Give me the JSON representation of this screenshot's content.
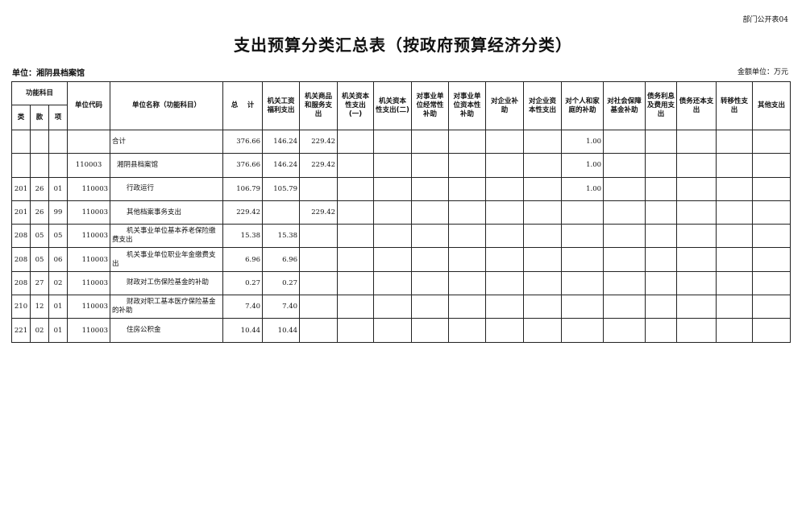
{
  "form_no": "部门公开表04",
  "title": "支出预算分类汇总表（按政府预算经济分类）",
  "unit_label": "单位：湘阴县档案馆",
  "amount_unit": "金额单位：万元",
  "headers": {
    "func_group": "功能科目",
    "lei": "类",
    "kuan": "款",
    "xiang": "项",
    "unit_code": "单位代码",
    "unit_name": "单位名称（功能科目）",
    "total": "总　 计",
    "cols": [
      "机关工资福利支出",
      "机关商品和服务支出",
      "机关资本性支出(一)",
      "机关资本性支出(二)",
      "对事业单位经常性补助",
      "对事业单位资本性补助",
      "对企业补助",
      "对企业资本性支出",
      "对个人和家庭的补助",
      "对社会保障基金补助",
      "债务利息及费用支出",
      "债务还本支出",
      "转移性支出",
      "其他支出"
    ]
  },
  "rows": [
    {
      "lei": "",
      "kuan": "",
      "xiang": "",
      "code": "",
      "name": "合计",
      "level": 0,
      "total": "376.66",
      "values": [
        "146.24",
        "229.42",
        "",
        "",
        "",
        "",
        "",
        "",
        "1.00",
        "",
        "",
        "",
        "",
        ""
      ]
    },
    {
      "lei": "",
      "kuan": "",
      "xiang": "",
      "code": "110003",
      "name": "湘阴县档案馆",
      "level": 1,
      "total": "376.66",
      "values": [
        "146.24",
        "229.42",
        "",
        "",
        "",
        "",
        "",
        "",
        "1.00",
        "",
        "",
        "",
        "",
        ""
      ]
    },
    {
      "lei": "201",
      "kuan": "26",
      "xiang": "01",
      "code": "110003",
      "name": "行政运行",
      "level": 2,
      "total": "106.79",
      "values": [
        "105.79",
        "",
        "",
        "",
        "",
        "",
        "",
        "",
        "1.00",
        "",
        "",
        "",
        "",
        ""
      ]
    },
    {
      "lei": "201",
      "kuan": "26",
      "xiang": "99",
      "code": "110003",
      "name": "其他档案事务支出",
      "level": 2,
      "total": "229.42",
      "values": [
        "",
        "229.42",
        "",
        "",
        "",
        "",
        "",
        "",
        "",
        "",
        "",
        "",
        "",
        ""
      ]
    },
    {
      "lei": "208",
      "kuan": "05",
      "xiang": "05",
      "code": "110003",
      "name": "机关事业单位基本养老保险缴费支出",
      "level": 2,
      "total": "15.38",
      "values": [
        "15.38",
        "",
        "",
        "",
        "",
        "",
        "",
        "",
        "",
        "",
        "",
        "",
        "",
        ""
      ]
    },
    {
      "lei": "208",
      "kuan": "05",
      "xiang": "06",
      "code": "110003",
      "name": "机关事业单位职业年金缴费支出",
      "level": 2,
      "total": "6.96",
      "values": [
        "6.96",
        "",
        "",
        "",
        "",
        "",
        "",
        "",
        "",
        "",
        "",
        "",
        "",
        ""
      ]
    },
    {
      "lei": "208",
      "kuan": "27",
      "xiang": "02",
      "code": "110003",
      "name": "财政对工伤保险基金的补助",
      "level": 2,
      "total": "0.27",
      "values": [
        "0.27",
        "",
        "",
        "",
        "",
        "",
        "",
        "",
        "",
        "",
        "",
        "",
        "",
        ""
      ]
    },
    {
      "lei": "210",
      "kuan": "12",
      "xiang": "01",
      "code": "110003",
      "name": "财政对职工基本医疗保险基金的补助",
      "level": 2,
      "total": "7.40",
      "values": [
        "7.40",
        "",
        "",
        "",
        "",
        "",
        "",
        "",
        "",
        "",
        "",
        "",
        "",
        ""
      ]
    },
    {
      "lei": "221",
      "kuan": "02",
      "xiang": "01",
      "code": "110003",
      "name": "住房公积金",
      "level": 2,
      "total": "10.44",
      "values": [
        "10.44",
        "",
        "",
        "",
        "",
        "",
        "",
        "",
        "",
        "",
        "",
        "",
        "",
        ""
      ]
    }
  ]
}
